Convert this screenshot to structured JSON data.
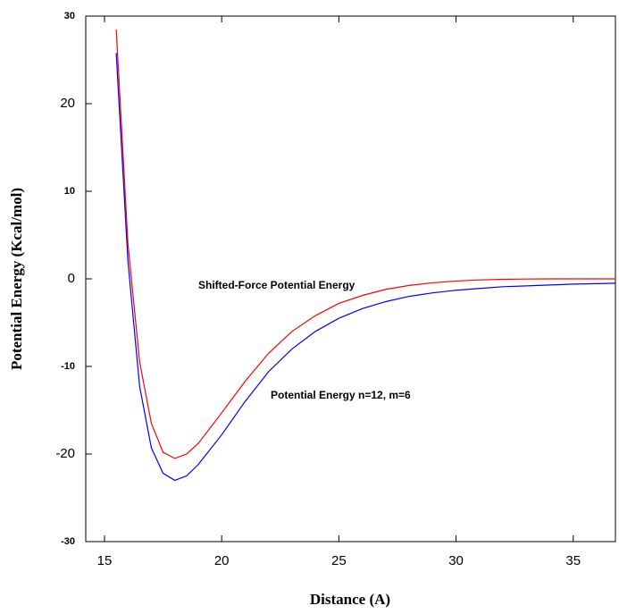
{
  "chart_data": {
    "type": "line",
    "xlabel": "Distance (A)",
    "ylabel": "Potential Energy (Kcal/mol)",
    "annotations": [
      "Shifted-Force Potential Energy",
      "Potential Energy n=12, m=6"
    ],
    "xlim": [
      14.2,
      36.8
    ],
    "ylim": [
      -30,
      30
    ],
    "xticks": [
      15,
      20,
      25,
      30,
      35
    ],
    "yticks": [
      -30,
      -20,
      -10,
      0,
      10,
      20,
      30
    ],
    "grid": false,
    "series": [
      {
        "name": "Shifted-Force Potential Energy",
        "color": "#ff0000",
        "x": [
          15.5,
          16,
          16.5,
          17,
          17.5,
          18,
          18.5,
          19,
          20,
          21,
          22,
          23,
          24,
          25,
          26,
          27,
          28,
          29,
          30,
          31,
          32,
          33,
          34,
          35,
          36,
          36.8
        ],
        "values": [
          28.5,
          4,
          -9.5,
          -16.5,
          -19.8,
          -20.5,
          -20,
          -18.8,
          -15.3,
          -11.7,
          -8.5,
          -6,
          -4.2,
          -2.8,
          -1.9,
          -1.2,
          -0.75,
          -0.45,
          -0.25,
          -0.12,
          -0.05,
          -0.02,
          0,
          0,
          0,
          0
        ]
      },
      {
        "name": "Potential Energy n=12, m=6",
        "color": "#0000ff",
        "x": [
          15.5,
          16,
          16.5,
          17,
          17.5,
          18,
          18.5,
          19,
          20,
          21,
          22,
          23,
          24,
          25,
          26,
          27,
          28,
          29,
          30,
          31,
          32,
          33,
          34,
          35,
          36,
          36.8
        ],
        "values": [
          25.8,
          2,
          -12.3,
          -19.3,
          -22.2,
          -23,
          -22.5,
          -21.2,
          -17.8,
          -14,
          -10.6,
          -8,
          -6,
          -4.5,
          -3.4,
          -2.6,
          -2,
          -1.6,
          -1.3,
          -1.1,
          -0.9,
          -0.8,
          -0.7,
          -0.6,
          -0.55,
          -0.5
        ]
      }
    ]
  }
}
